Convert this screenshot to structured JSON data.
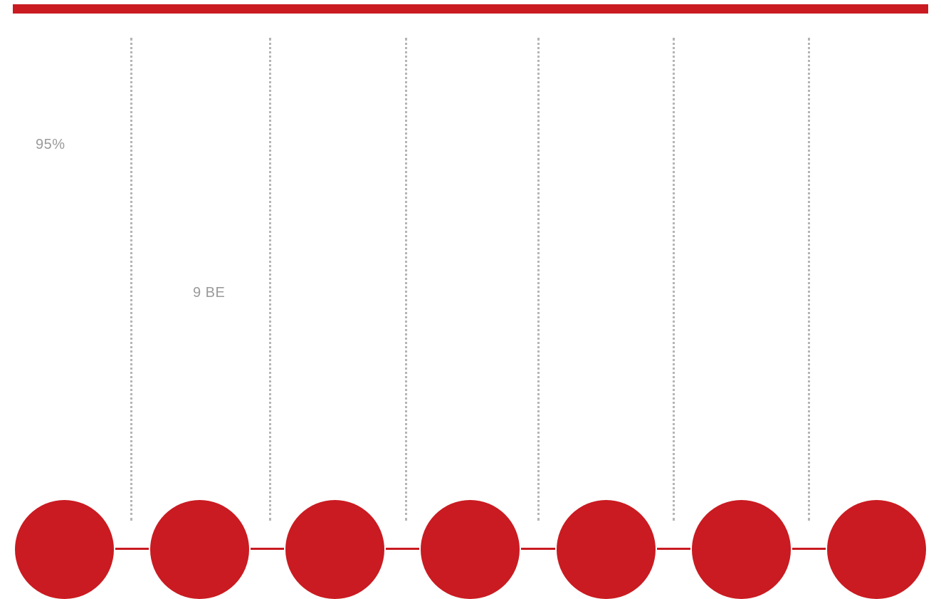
{
  "colors": {
    "accent": "#c91b21",
    "label_text": "#9a9a9a",
    "divider": "#b5b5b5",
    "background": "#ffffff"
  },
  "labels": {
    "percent": "95%",
    "step_value": "9 BE"
  },
  "steps": [
    {
      "icon": "circle"
    },
    {
      "icon": "circle"
    },
    {
      "icon": "circle"
    },
    {
      "icon": "circle"
    },
    {
      "icon": "circle"
    },
    {
      "icon": "circle"
    },
    {
      "icon": "circle"
    }
  ]
}
